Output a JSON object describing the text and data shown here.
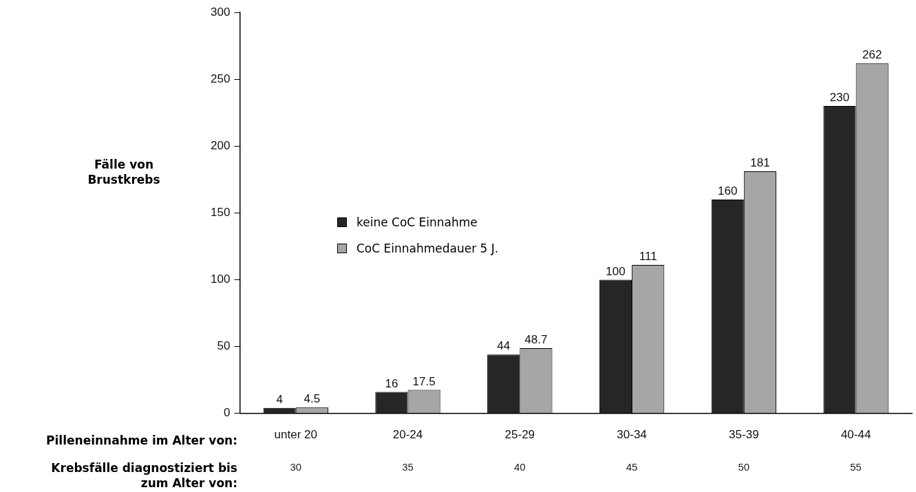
{
  "chart_data": {
    "type": "bar",
    "ylabel": "Fälle von Brustkrebs",
    "categories": [
      "unter 20",
      "20-24",
      "25-29",
      "30-34",
      "35-39",
      "40-44"
    ],
    "series": [
      {
        "name": "keine CoC Einnahme",
        "color": "#262626",
        "values": [
          4,
          16,
          44,
          100,
          160,
          230
        ]
      },
      {
        "name": "CoC Einnahmedauer 5 J.",
        "color": "#a6a6a6",
        "values": [
          4.5,
          17.5,
          48.7,
          111,
          181,
          262
        ]
      }
    ],
    "ylim": [
      0,
      300
    ],
    "yticks": [
      0,
      50,
      100,
      150,
      200,
      250,
      300
    ],
    "grid": false,
    "legend": "left",
    "data_labels": true,
    "annotations": [
      "Pilleneinnahme im Alter von:",
      "Krebsfälle diagnostiziert bis zum Alter von:",
      "30",
      "35",
      "40",
      "45",
      "50",
      "55"
    ]
  }
}
